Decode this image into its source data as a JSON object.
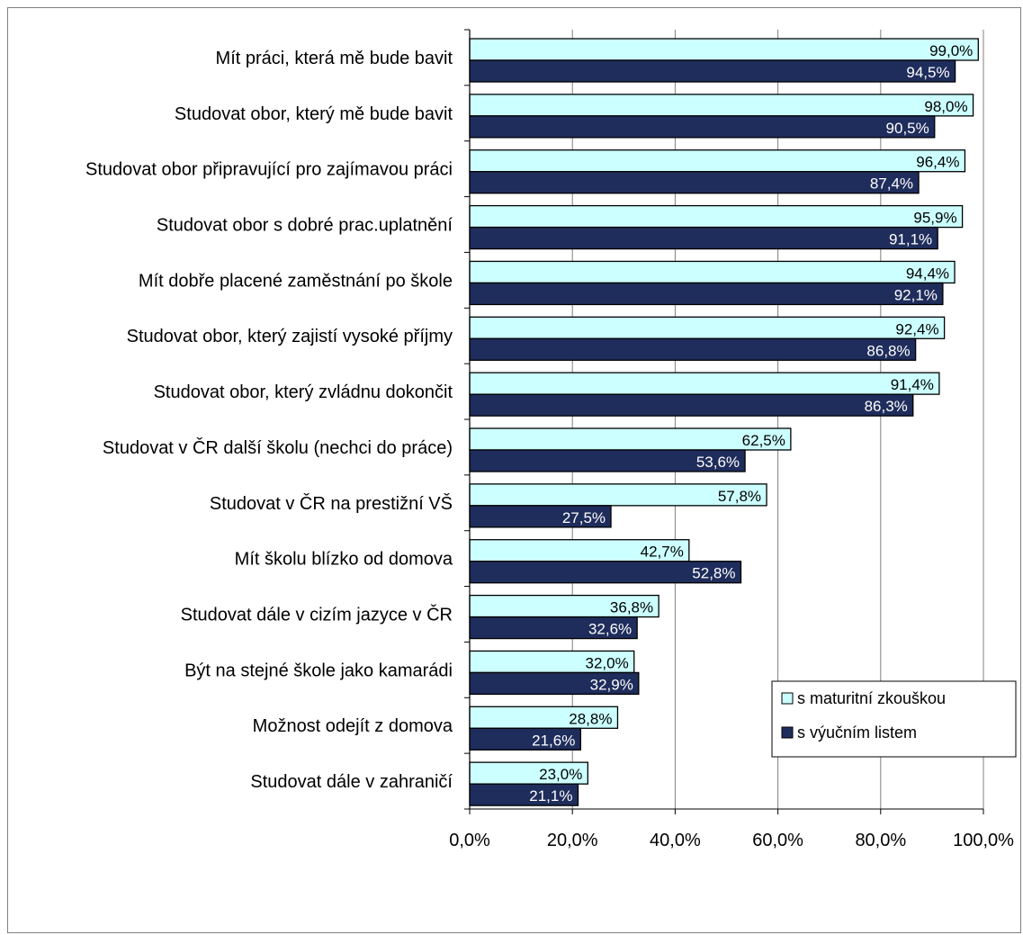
{
  "chart_data": {
    "type": "bar",
    "orientation": "horizontal",
    "categories": [
      "Mít práci, která mě bude bavit",
      "Studovat obor, který mě bude bavit",
      "Studovat obor připravující pro zajímavou práci",
      "Studovat obor s dobré prac.uplatnění",
      "Mít dobře placené zaměstnání po škole",
      "Studovat obor, který zajistí vysoké příjmy",
      "Studovat obor, který zvládnu dokončit",
      "Studovat  v ČR další školu (nechci do práce)",
      "Studovat v ČR na  prestižní VŠ",
      "Mít školu blízko od domova",
      "Studovat dále v cizím jazyce v ČR",
      "Být na stejné škole jako kamarádi",
      "Možnost odejít z domova",
      "Studovat dále v zahraničí"
    ],
    "series": [
      {
        "name": "s maturitní zkouškou",
        "color": "#ccffff",
        "label_color": "#000000",
        "values": [
          99.0,
          98.0,
          96.4,
          95.9,
          94.4,
          92.4,
          91.4,
          62.5,
          57.8,
          42.7,
          36.8,
          32.0,
          28.8,
          23.0
        ],
        "labels": [
          "99,0%",
          "98,0%",
          "96,4%",
          "95,9%",
          "94,4%",
          "92,4%",
          "91,4%",
          "62,5%",
          "57,8%",
          "42,7%",
          "36,8%",
          "32,0%",
          "28,8%",
          "23,0%"
        ]
      },
      {
        "name": "s výučním listem",
        "color": "#1f2d5c",
        "label_color": "#ffffff",
        "values": [
          94.5,
          90.5,
          87.4,
          91.1,
          92.1,
          86.8,
          86.3,
          53.6,
          27.5,
          52.8,
          32.6,
          32.9,
          21.6,
          21.1
        ],
        "labels": [
          "94,5%",
          "90,5%",
          "87,4%",
          "91,1%",
          "92,1%",
          "86,8%",
          "86,3%",
          "53,6%",
          "27,5%",
          "52,8%",
          "32,6%",
          "32,9%",
          "21,6%",
          "21,1%"
        ]
      }
    ],
    "xlim": [
      0,
      100
    ],
    "x_ticks": [
      0,
      20,
      40,
      60,
      80,
      100
    ],
    "x_tick_labels": [
      "0,0%",
      "20,0%",
      "40,0%",
      "60,0%",
      "80,0%",
      "100,0%"
    ],
    "grid": "vertical",
    "legend_position": "bottom-right",
    "title": "",
    "xlabel": "",
    "ylabel": ""
  }
}
